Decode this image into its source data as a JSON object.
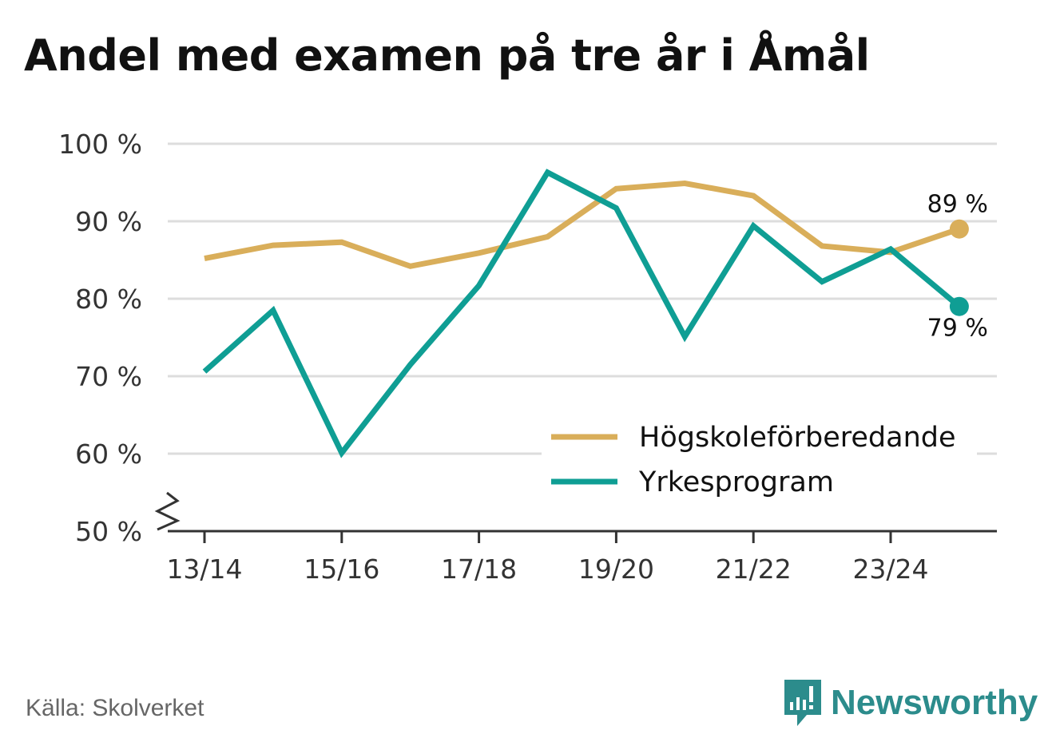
{
  "title": "Andel med examen på tre år i Åmål",
  "source": "Källa: Skolverket",
  "brand": "Newsworthy",
  "colors": {
    "series1": "#d9ae5a",
    "series2": "#0f9e94",
    "grid": "#dddddd",
    "axis": "#333333",
    "brand": "#2c8c8c"
  },
  "chart_data": {
    "type": "line",
    "x": [
      "13/14",
      "14/15",
      "15/16",
      "16/17",
      "17/18",
      "18/19",
      "19/20",
      "20/21",
      "21/22",
      "22/23",
      "23/24",
      "24/25"
    ],
    "x_tick_labels": [
      "13/14",
      "15/16",
      "17/18",
      "19/20",
      "21/22",
      "23/24"
    ],
    "ylim": [
      50,
      100
    ],
    "y_ticks": [
      50,
      60,
      70,
      80,
      90,
      100
    ],
    "y_tick_labels": [
      "50 %",
      "60 %",
      "70 %",
      "80 %",
      "90 %",
      "100 %"
    ],
    "grid": true,
    "legend_position": "bottom-right",
    "series": [
      {
        "name": "Högskoleförberedande",
        "color": "#d9ae5a",
        "values": [
          85.2,
          86.9,
          87.3,
          84.2,
          85.9,
          88.0,
          94.2,
          94.9,
          93.3,
          86.8,
          86.0,
          89.0
        ],
        "end_label": "89 %"
      },
      {
        "name": "Yrkesprogram",
        "color": "#0f9e94",
        "values": [
          70.6,
          78.5,
          60.1,
          71.5,
          81.7,
          96.3,
          91.7,
          75.1,
          89.4,
          82.2,
          86.4,
          79.0
        ],
        "end_label": "79 %"
      }
    ]
  }
}
